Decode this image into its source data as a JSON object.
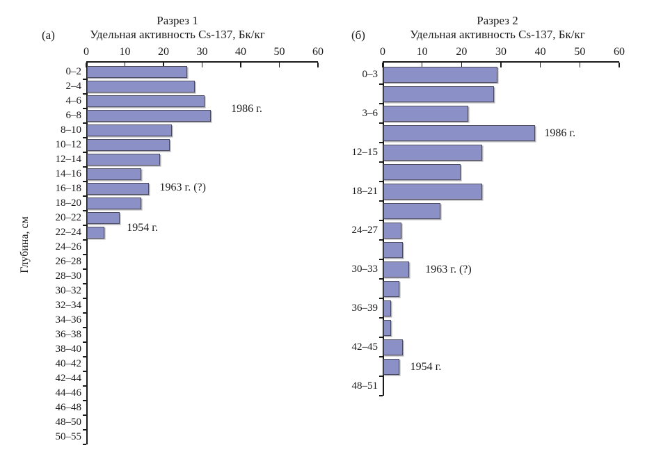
{
  "figure": {
    "background": "#ffffff",
    "text_color": "#1a1a1a",
    "axis_color": "#1a1a1a",
    "bar_fill": "#8b91c6",
    "bar_border": "#4a4a5c"
  },
  "chart_data": [
    {
      "type": "bar",
      "orientation": "horizontal",
      "panel_letter": "(а)",
      "title": "Разрез 1",
      "xlabel": "Удельная активность Cs-137, Бк/кг",
      "ylabel": "Глубина, см",
      "xlim": [
        0,
        60
      ],
      "xticks": [
        0,
        10,
        20,
        30,
        40,
        50,
        60
      ],
      "grid": false,
      "categories": [
        "0–2",
        "2–4",
        "4–6",
        "6–8",
        "8–10",
        "10–12",
        "12–14",
        "14–16",
        "16–18",
        "18–20",
        "20–22",
        "22–24",
        "24–26",
        "26–28",
        "28–30",
        "30–32",
        "32–34",
        "34–36",
        "36–38",
        "38–40",
        "40–42",
        "42–44",
        "44–46",
        "46–48",
        "48–50",
        "50–55"
      ],
      "values": [
        26,
        28,
        30.5,
        32,
        22,
        21.5,
        19,
        14,
        16,
        14,
        8.5,
        4.5,
        0,
        0,
        0,
        0,
        0,
        0,
        0,
        0,
        0,
        0,
        0,
        0,
        0,
        0
      ],
      "annotations": [
        {
          "text": "1986 г.",
          "x": 37.5,
          "row": 3.05
        },
        {
          "text": "1963 г. (?)",
          "x": 19,
          "row": 8.45
        },
        {
          "text": "1954 г.",
          "x": 10.5,
          "row": 11.2
        }
      ]
    },
    {
      "type": "bar",
      "orientation": "horizontal",
      "panel_letter": "(б)",
      "title": "Разрез 2",
      "xlabel": "Удельная активность Cs-137, Бк/кг",
      "ylabel": "",
      "xlim": [
        0,
        60
      ],
      "xticks": [
        0,
        10,
        20,
        30,
        40,
        50,
        60
      ],
      "grid": false,
      "categories": [
        "0–3",
        "",
        "3–6",
        "",
        "12–15",
        "",
        "18–21",
        "",
        "24–27",
        "",
        "30–33",
        "",
        "36–39",
        "",
        "42–45",
        "",
        "48–51"
      ],
      "values": [
        29,
        28,
        21.5,
        38.5,
        25,
        19.5,
        25,
        14.5,
        4.5,
        5,
        6.5,
        4,
        2,
        2,
        5,
        4,
        0
      ],
      "annotations": [
        {
          "text": "1986 г.",
          "x": 41,
          "row": 3.55
        },
        {
          "text": "1963 г. (?)",
          "x": 10.8,
          "row": 10.55
        },
        {
          "text": "1954 г.",
          "x": 7,
          "row": 15.55
        }
      ]
    }
  ]
}
